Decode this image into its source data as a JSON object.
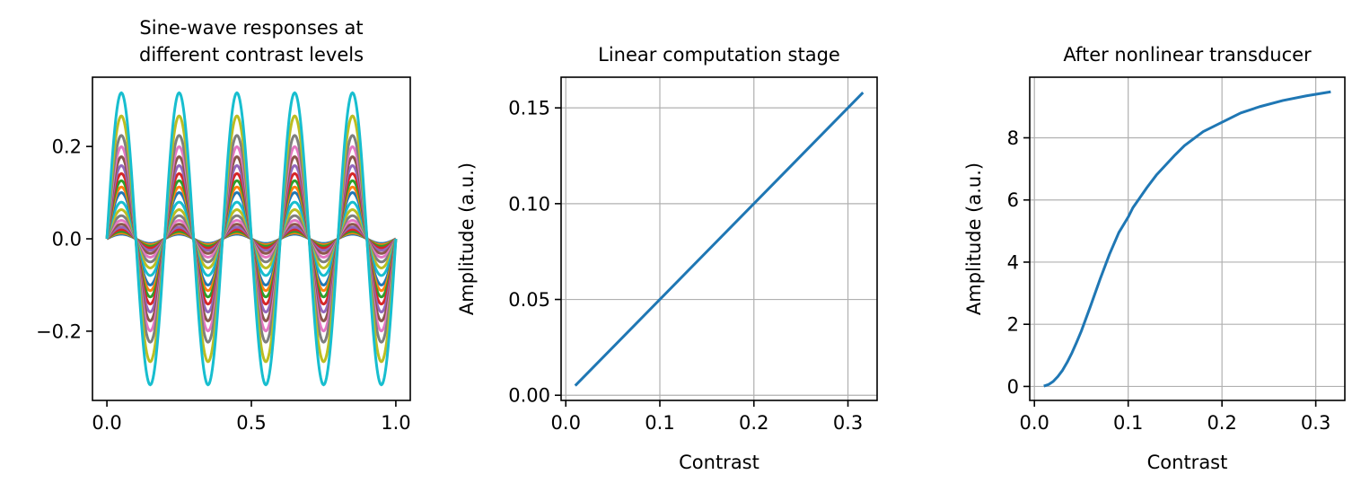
{
  "chart_data": [
    {
      "type": "line",
      "title": "Sine-wave responses at\ndifferent contrast levels",
      "xlabel": "",
      "ylabel": "",
      "xlim": [
        -0.05,
        1.05
      ],
      "ylim": [
        -0.35,
        0.35
      ],
      "xticks": [
        0.0,
        0.5,
        1.0
      ],
      "xtick_labels": [
        "0.0",
        "0.5",
        "1.0"
      ],
      "yticks": [
        -0.2,
        0.0,
        0.2
      ],
      "ytick_labels": [
        "−0.2",
        "0.0",
        "0.2"
      ],
      "grid": false,
      "wave": {
        "function": "amplitude * sin(2*pi*5*x)",
        "frequency_cycles": 5,
        "x_range": [
          0,
          1
        ]
      },
      "series": [
        {
          "amplitude": 0.01,
          "color": "#1f77b4"
        },
        {
          "amplitude": 0.0126,
          "color": "#ff7f0e"
        },
        {
          "amplitude": 0.0158,
          "color": "#2ca02c"
        },
        {
          "amplitude": 0.02,
          "color": "#d62728"
        },
        {
          "amplitude": 0.0251,
          "color": "#9467bd"
        },
        {
          "amplitude": 0.0316,
          "color": "#8c564b"
        },
        {
          "amplitude": 0.0398,
          "color": "#e377c2"
        },
        {
          "amplitude": 0.0501,
          "color": "#7f7f7f"
        },
        {
          "amplitude": 0.0631,
          "color": "#bcbd22"
        },
        {
          "amplitude": 0.0794,
          "color": "#17becf"
        },
        {
          "amplitude": 0.1,
          "color": "#1f77b4"
        },
        {
          "amplitude": 0.1122,
          "color": "#ff7f0e"
        },
        {
          "amplitude": 0.1259,
          "color": "#2ca02c"
        },
        {
          "amplitude": 0.1413,
          "color": "#d62728"
        },
        {
          "amplitude": 0.1585,
          "color": "#9467bd"
        },
        {
          "amplitude": 0.1778,
          "color": "#8c564b"
        },
        {
          "amplitude": 0.1995,
          "color": "#e377c2"
        },
        {
          "amplitude": 0.2239,
          "color": "#7f7f7f"
        },
        {
          "amplitude": 0.2661,
          "color": "#bcbd22"
        },
        {
          "amplitude": 0.3162,
          "color": "#17becf"
        }
      ]
    },
    {
      "type": "line",
      "title": "Linear computation stage",
      "xlabel": "Contrast",
      "ylabel": "Amplitude (a.u.)",
      "xlim": [
        -0.005,
        0.331
      ],
      "ylim": [
        -0.0027,
        0.166
      ],
      "xticks": [
        0.0,
        0.1,
        0.2,
        0.3
      ],
      "xtick_labels": [
        "0.0",
        "0.1",
        "0.2",
        "0.3"
      ],
      "yticks": [
        0.0,
        0.05,
        0.1,
        0.15
      ],
      "ytick_labels": [
        "0.00",
        "0.05",
        "0.10",
        "0.15"
      ],
      "grid": true,
      "series": [
        {
          "color": "#1f77b4",
          "x": [
            0.01,
            0.316
          ],
          "y": [
            0.005,
            0.158
          ]
        }
      ]
    },
    {
      "type": "line",
      "title": "After nonlinear transducer",
      "xlabel": "Contrast",
      "ylabel": "Amplitude (a.u.)",
      "xlim": [
        -0.005,
        0.331
      ],
      "ylim": [
        -0.45,
        9.95
      ],
      "xticks": [
        0.0,
        0.1,
        0.2,
        0.3
      ],
      "xtick_labels": [
        "0.0",
        "0.1",
        "0.2",
        "0.3"
      ],
      "yticks": [
        0,
        2,
        4,
        6,
        8
      ],
      "ytick_labels": [
        "0",
        "2",
        "4",
        "6",
        "8"
      ],
      "grid": true,
      "series": [
        {
          "color": "#1f77b4",
          "x": [
            0.01,
            0.015,
            0.02,
            0.025,
            0.03,
            0.035,
            0.04,
            0.045,
            0.05,
            0.06,
            0.07,
            0.08,
            0.09,
            0.1,
            0.105,
            0.12,
            0.13,
            0.15,
            0.16,
            0.18,
            0.2,
            0.22,
            0.24,
            0.265,
            0.29,
            0.316
          ],
          "y": [
            0.01,
            0.06,
            0.16,
            0.32,
            0.52,
            0.78,
            1.08,
            1.42,
            1.78,
            2.6,
            3.45,
            4.25,
            4.95,
            5.45,
            5.75,
            6.4,
            6.8,
            7.45,
            7.75,
            8.2,
            8.5,
            8.8,
            9.0,
            9.2,
            9.35,
            9.48
          ]
        }
      ]
    }
  ]
}
